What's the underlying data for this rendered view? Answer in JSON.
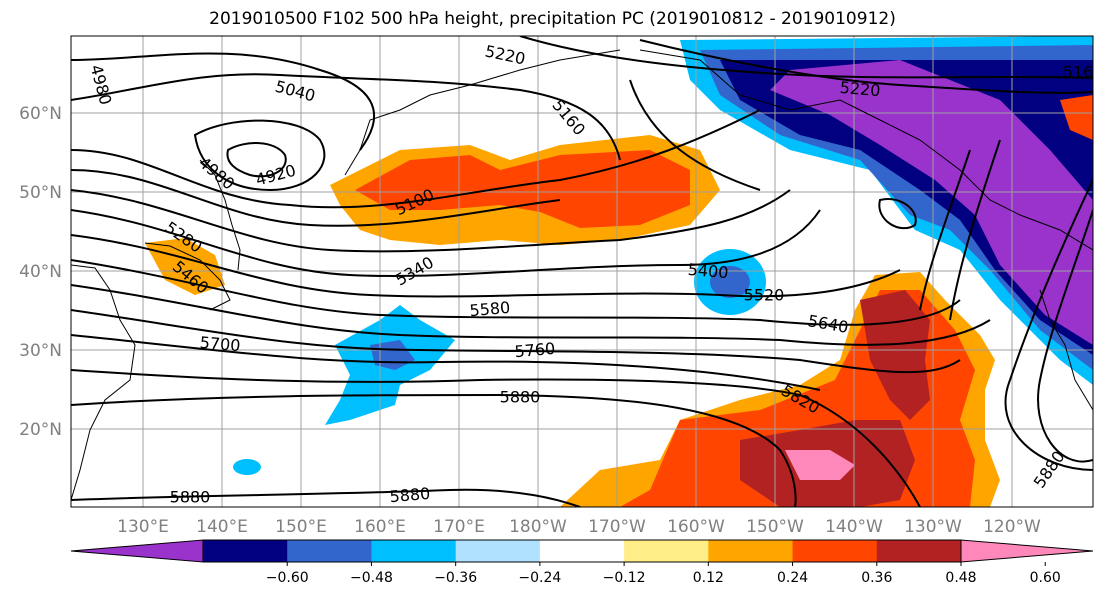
{
  "title": "2019010500 F102 500 hPa height, precipitation PC (2019010812 - 2019010912)",
  "lat_labels": [
    "60°N",
    "50°N",
    "40°N",
    "30°N",
    "20°N"
  ],
  "lon_labels": [
    "130°E",
    "140°E",
    "150°E",
    "160°E",
    "170°E",
    "180°W",
    "170°W",
    "160°W",
    "150°W",
    "140°W",
    "130°W",
    "120°W"
  ],
  "colorbar": {
    "colors": [
      "#9933cc",
      "#000080",
      "#3366cc",
      "#00bfff",
      "#b0e2ff",
      "#ffffff",
      "#ffee88",
      "#ffa500",
      "#ff4500",
      "#b22222",
      "#ff88bb"
    ],
    "tick_labels": [
      "−0.60",
      "−0.48",
      "−0.36",
      "−0.24",
      "−0.12",
      "0.12",
      "0.24",
      "0.36",
      "0.48",
      "0.60"
    ]
  },
  "contour_labels": [
    "4980",
    "5040",
    "5220",
    "5160",
    "5220",
    "516",
    "4920",
    "4980",
    "5100",
    "5280",
    "5460",
    "5340",
    "5400",
    "5520",
    "5580",
    "5640",
    "5700",
    "5760",
    "5880",
    "5820",
    "5880",
    "5880",
    "5880"
  ]
}
